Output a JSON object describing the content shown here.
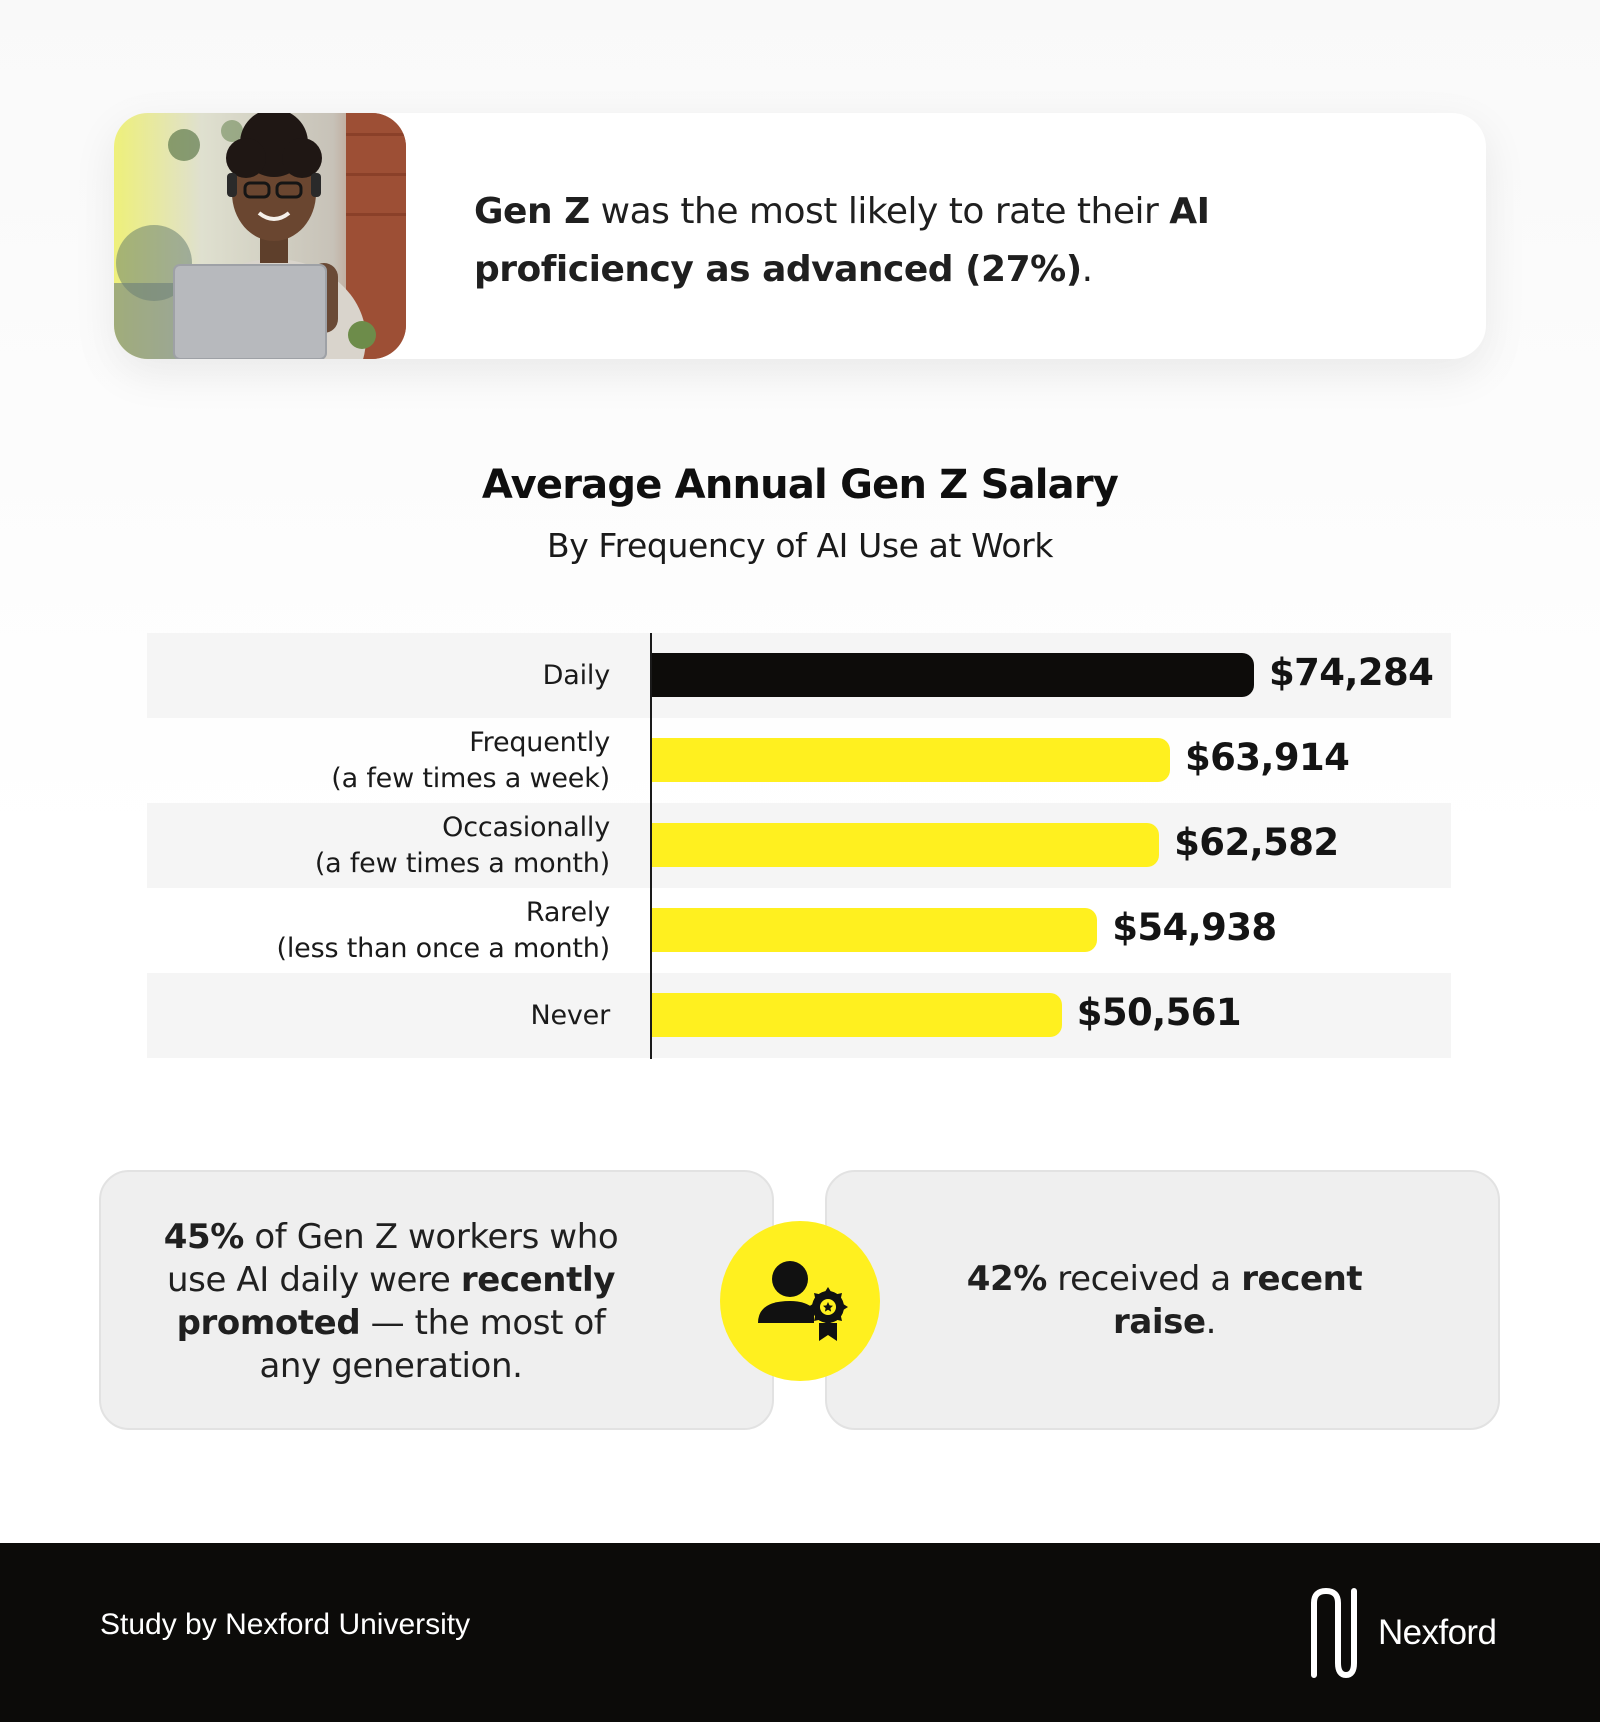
{
  "insight": {
    "lead_bold": "Gen Z",
    "lead_text": " was the most likely to rate their ",
    "tail_bold": "AI proficiency as advanced (27%)",
    "tail_text": "."
  },
  "chart_data": {
    "type": "bar",
    "orientation": "horizontal",
    "title": "Average Annual Gen Z Salary",
    "subtitle": "By Frequency of AI Use at Work",
    "categories": [
      [
        "Daily"
      ],
      [
        "Frequently",
        "(a few times a week)"
      ],
      [
        "Occasionally",
        "(a few times a month)"
      ],
      [
        "Rarely",
        "(less than once a month)"
      ],
      [
        "Never"
      ]
    ],
    "values": [
      74284,
      63914,
      62582,
      54938,
      50561
    ],
    "value_labels": [
      "$74,284",
      "$63,914",
      "$62,582",
      "$54,938",
      "$50,561"
    ],
    "bar_colors": [
      "#0d0c0a",
      "#fff01f",
      "#fff01f",
      "#fff01f",
      "#fff01f"
    ],
    "xlim": [
      0,
      74284
    ],
    "grid": false,
    "legend": "none"
  },
  "stats": {
    "left": {
      "p1_bold": "45%",
      "p1_text": " of Gen Z workers who use AI daily were ",
      "p2_bold": "recently promoted",
      "p2_text": " — the most of any generation."
    },
    "right": {
      "p1_bold": "42%",
      "p1_text": " received a ",
      "p2_bold": "recent raise",
      "p2_text": "."
    },
    "badge_icon": "user-award-icon"
  },
  "footer": {
    "credit": "Study by Nexford University",
    "brand": "Nexford",
    "logo_icon": "nexford-logo-icon"
  },
  "colors": {
    "accent_yellow": "#fff01f",
    "bar_dark": "#0d0c0a",
    "footer_bg": "#0c0b09",
    "card_bg": "#efefef"
  }
}
